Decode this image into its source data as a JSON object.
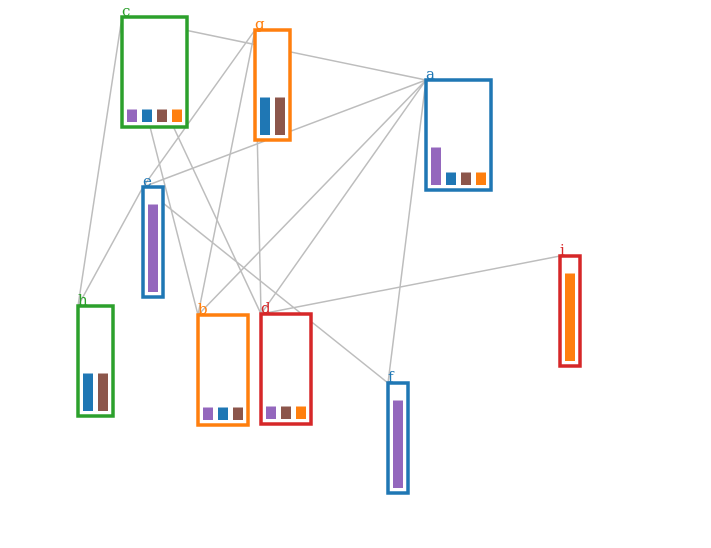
{
  "colors": {
    "blue": "#1f77b4",
    "orange": "#ff7f0e",
    "green": "#2ca02c",
    "red": "#d62728",
    "purple": "#9467bd",
    "brown": "#8c564b",
    "edge": "#bdbdbd"
  },
  "nodes": [
    {
      "id": "c",
      "label": "c",
      "border": "green",
      "bars": [
        {
          "color": "purple",
          "value": 1
        },
        {
          "color": "blue",
          "value": 1
        },
        {
          "color": "brown",
          "value": 1
        },
        {
          "color": "orange",
          "value": 1
        }
      ]
    },
    {
      "id": "g",
      "label": "g",
      "border": "orange",
      "bars": [
        {
          "color": "blue",
          "value": 2
        },
        {
          "color": "brown",
          "value": 2
        }
      ]
    },
    {
      "id": "a",
      "label": "a",
      "border": "blue",
      "bars": [
        {
          "color": "purple",
          "value": 2
        },
        {
          "color": "blue",
          "value": 1
        },
        {
          "color": "brown",
          "value": 1
        },
        {
          "color": "orange",
          "value": 1
        }
      ]
    },
    {
      "id": "e",
      "label": "e",
      "border": "blue",
      "bars": [
        {
          "color": "purple",
          "value": 4
        }
      ]
    },
    {
      "id": "i",
      "label": "i",
      "border": "red",
      "bars": [
        {
          "color": "orange",
          "value": 4
        }
      ]
    },
    {
      "id": "h",
      "label": "h",
      "border": "green",
      "bars": [
        {
          "color": "blue",
          "value": 2
        },
        {
          "color": "brown",
          "value": 2
        }
      ]
    },
    {
      "id": "b",
      "label": "b",
      "border": "orange",
      "bars": [
        {
          "color": "purple",
          "value": 1
        },
        {
          "color": "blue",
          "value": 1
        },
        {
          "color": "brown",
          "value": 1
        }
      ]
    },
    {
      "id": "d",
      "label": "d",
      "border": "red",
      "bars": [
        {
          "color": "purple",
          "value": 1
        },
        {
          "color": "brown",
          "value": 1
        },
        {
          "color": "orange",
          "value": 1
        }
      ]
    },
    {
      "id": "f",
      "label": "f",
      "border": "blue",
      "bars": [
        {
          "color": "purple",
          "value": 4
        }
      ]
    }
  ],
  "edges": [
    [
      "c",
      "a"
    ],
    [
      "c",
      "h"
    ],
    [
      "c",
      "b"
    ],
    [
      "c",
      "d"
    ],
    [
      "g",
      "e"
    ],
    [
      "g",
      "b"
    ],
    [
      "g",
      "d"
    ],
    [
      "a",
      "e"
    ],
    [
      "a",
      "b"
    ],
    [
      "a",
      "d"
    ],
    [
      "a",
      "f"
    ],
    [
      "e",
      "h"
    ],
    [
      "e",
      "f"
    ],
    [
      "i",
      "d"
    ]
  ]
}
